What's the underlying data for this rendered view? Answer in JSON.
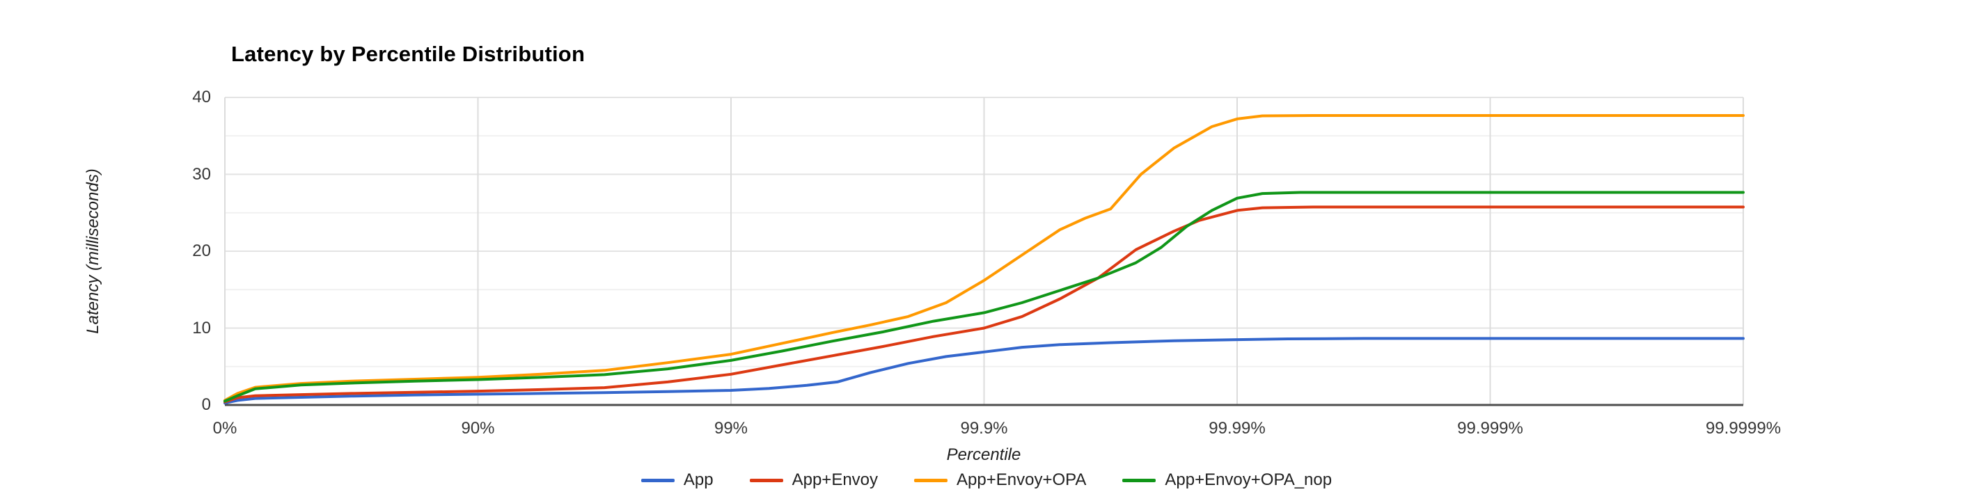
{
  "title": "Latency by Percentile Distribution",
  "chart_data": {
    "type": "line",
    "title": "Latency by Percentile Distribution",
    "xlabel": "Percentile",
    "ylabel": "Latency (milliseconds)",
    "x_tick_labels": [
      "0%",
      "90%",
      "99%",
      "99.9%",
      "99.99%",
      "99.999%",
      "99.9999%"
    ],
    "x_tick_units": [
      0,
      1,
      2,
      3,
      4,
      5,
      6
    ],
    "x_scale_note": "percentile axis, evenly spaced ticks per log10(1/(1-p)) unit",
    "y_tick_labels": [
      "0",
      "10",
      "20",
      "30",
      "40"
    ],
    "y_major_ticks": [
      0,
      10,
      20,
      30,
      40
    ],
    "y_minor_gridlines": [
      5,
      15,
      25,
      35
    ],
    "ylim": [
      0,
      40
    ],
    "grid": true,
    "legend_position": "bottom",
    "background": "#ffffff",
    "gridline_color": "#e3e3e3",
    "minor_gridline_color": "#f1f1f1",
    "baseline_color": "#4d4d4d",
    "series": [
      {
        "name": "App",
        "color": "#3366cc",
        "points": [
          [
            0,
            0.25
          ],
          [
            0.05,
            0.6
          ],
          [
            0.12,
            0.85
          ],
          [
            0.3,
            1.0
          ],
          [
            0.5,
            1.15
          ],
          [
            0.75,
            1.3
          ],
          [
            1,
            1.4
          ],
          [
            1.25,
            1.5
          ],
          [
            1.5,
            1.6
          ],
          [
            1.75,
            1.75
          ],
          [
            2,
            1.9
          ],
          [
            2.15,
            2.15
          ],
          [
            2.3,
            2.55
          ],
          [
            2.42,
            3.0
          ],
          [
            2.55,
            4.2
          ],
          [
            2.7,
            5.4
          ],
          [
            2.85,
            6.3
          ],
          [
            3,
            6.9
          ],
          [
            3.15,
            7.5
          ],
          [
            3.3,
            7.85
          ],
          [
            3.5,
            8.1
          ],
          [
            3.75,
            8.35
          ],
          [
            4,
            8.5
          ],
          [
            4.2,
            8.6
          ],
          [
            4.5,
            8.65
          ],
          [
            5,
            8.65
          ],
          [
            5.5,
            8.65
          ],
          [
            6,
            8.65
          ]
        ]
      },
      {
        "name": "App+Envoy",
        "color": "#dc3912",
        "points": [
          [
            0,
            0.4
          ],
          [
            0.05,
            0.95
          ],
          [
            0.12,
            1.2
          ],
          [
            0.3,
            1.35
          ],
          [
            0.5,
            1.5
          ],
          [
            0.75,
            1.65
          ],
          [
            1,
            1.8
          ],
          [
            1.25,
            2.0
          ],
          [
            1.5,
            2.25
          ],
          [
            1.75,
            3.0
          ],
          [
            2,
            4.0
          ],
          [
            2.2,
            5.2
          ],
          [
            2.4,
            6.4
          ],
          [
            2.6,
            7.6
          ],
          [
            2.8,
            8.9
          ],
          [
            3,
            10.0
          ],
          [
            3.15,
            11.5
          ],
          [
            3.3,
            13.8
          ],
          [
            3.45,
            16.5
          ],
          [
            3.6,
            20.2
          ],
          [
            3.75,
            22.6
          ],
          [
            3.85,
            24.0
          ],
          [
            4,
            25.3
          ],
          [
            4.1,
            25.65
          ],
          [
            4.3,
            25.75
          ],
          [
            5,
            25.75
          ],
          [
            5.5,
            25.75
          ],
          [
            6,
            25.75
          ]
        ]
      },
      {
        "name": "App+Envoy+OPA",
        "color": "#ff9900",
        "points": [
          [
            0,
            0.6
          ],
          [
            0.05,
            1.5
          ],
          [
            0.12,
            2.3
          ],
          [
            0.3,
            2.8
          ],
          [
            0.5,
            3.1
          ],
          [
            0.75,
            3.35
          ],
          [
            1,
            3.6
          ],
          [
            1.25,
            4.0
          ],
          [
            1.5,
            4.5
          ],
          [
            1.75,
            5.5
          ],
          [
            2,
            6.6
          ],
          [
            2.2,
            8.0
          ],
          [
            2.4,
            9.4
          ],
          [
            2.55,
            10.4
          ],
          [
            2.7,
            11.5
          ],
          [
            2.85,
            13.3
          ],
          [
            3,
            16.2
          ],
          [
            3.15,
            19.5
          ],
          [
            3.3,
            22.8
          ],
          [
            3.4,
            24.3
          ],
          [
            3.5,
            25.5
          ],
          [
            3.62,
            30.0
          ],
          [
            3.75,
            33.4
          ],
          [
            3.9,
            36.2
          ],
          [
            4,
            37.2
          ],
          [
            4.1,
            37.6
          ],
          [
            4.3,
            37.65
          ],
          [
            5,
            37.65
          ],
          [
            5.5,
            37.65
          ],
          [
            6,
            37.65
          ]
        ]
      },
      {
        "name": "App+Envoy+OPA_nop",
        "color": "#109618",
        "points": [
          [
            0,
            0.5
          ],
          [
            0.05,
            1.2
          ],
          [
            0.12,
            2.1
          ],
          [
            0.3,
            2.6
          ],
          [
            0.5,
            2.85
          ],
          [
            0.75,
            3.1
          ],
          [
            1,
            3.3
          ],
          [
            1.25,
            3.6
          ],
          [
            1.5,
            3.95
          ],
          [
            1.75,
            4.7
          ],
          [
            2,
            5.8
          ],
          [
            2.2,
            7.0
          ],
          [
            2.4,
            8.3
          ],
          [
            2.6,
            9.5
          ],
          [
            2.8,
            10.9
          ],
          [
            3,
            12.0
          ],
          [
            3.15,
            13.3
          ],
          [
            3.3,
            14.9
          ],
          [
            3.45,
            16.5
          ],
          [
            3.6,
            18.5
          ],
          [
            3.7,
            20.5
          ],
          [
            3.8,
            23.2
          ],
          [
            3.9,
            25.3
          ],
          [
            4,
            26.9
          ],
          [
            4.1,
            27.5
          ],
          [
            4.25,
            27.65
          ],
          [
            5,
            27.65
          ],
          [
            5.5,
            27.65
          ],
          [
            6,
            27.65
          ]
        ]
      }
    ]
  }
}
